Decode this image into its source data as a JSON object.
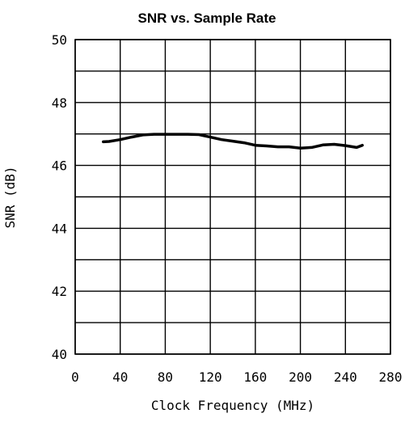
{
  "chart_data": {
    "type": "line",
    "title": "SNR vs. Sample Rate",
    "xlabel": "Clock Frequency (MHz)",
    "ylabel": "SNR (dB)",
    "xlim": [
      0,
      280
    ],
    "ylim": [
      40,
      50
    ],
    "x_ticks": [
      0,
      40,
      80,
      120,
      160,
      200,
      240,
      280
    ],
    "y_ticks_labeled": [
      40,
      42,
      44,
      46,
      48,
      50
    ],
    "y_gridlines": [
      40,
      41,
      42,
      43,
      44,
      45,
      46,
      47,
      48,
      49,
      50
    ],
    "grid": true,
    "series": [
      {
        "color": "#000000",
        "x": [
          25,
          30,
          40,
          50,
          60,
          70,
          80,
          90,
          100,
          110,
          120,
          130,
          140,
          150,
          160,
          170,
          180,
          190,
          200,
          210,
          220,
          230,
          240,
          250,
          255
        ],
        "y": [
          46.75,
          46.76,
          46.82,
          46.9,
          46.97,
          46.99,
          46.99,
          46.99,
          46.99,
          46.98,
          46.9,
          46.82,
          46.77,
          46.72,
          46.64,
          46.62,
          46.59,
          46.59,
          46.55,
          46.57,
          46.65,
          46.67,
          46.63,
          46.57,
          46.64
        ]
      }
    ]
  }
}
